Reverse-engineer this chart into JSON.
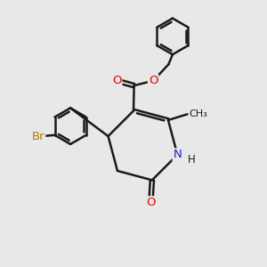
{
  "bg_color": "#e8e8e8",
  "bond_color": "#1a1a1a",
  "bond_width": 1.8,
  "dbo": 0.055,
  "atom_colors": {
    "O": "#e60000",
    "N": "#2222cc",
    "Br": "#b87800",
    "C": "#1a1a1a",
    "H": "#1a1a1a"
  },
  "font_size": 9.5,
  "fig_width": 3.0,
  "fig_height": 3.0,
  "dpi": 100
}
